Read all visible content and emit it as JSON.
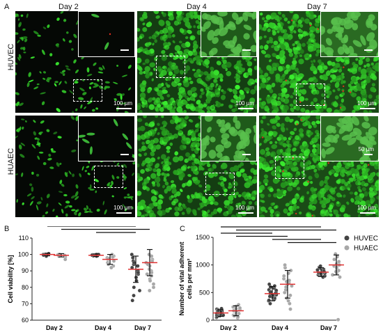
{
  "panel_labels": {
    "a": "A",
    "b": "B",
    "c": "C"
  },
  "micrographs": {
    "columns": [
      "Day 2",
      "Day 4",
      "Day 7"
    ],
    "rows": [
      "HUVEC",
      "HUAEC"
    ],
    "scale_bars": [
      "100 µm",
      "100 µm",
      "100 µm",
      "100 µm",
      "100 µm",
      "100 µm"
    ],
    "inset_scale_label": "50 µm",
    "colors": {
      "live": "#3ccf3a",
      "dead": "#e03020",
      "background": "#050805"
    }
  },
  "chart_data": [
    {
      "type": "scatter",
      "panel": "B",
      "ylabel": "Cell viability [%]",
      "categories": [
        "Day 2",
        "Day 4",
        "Day 7"
      ],
      "ylim": [
        60,
        110
      ],
      "yticks": [
        60,
        70,
        80,
        90,
        100,
        110
      ],
      "colors": {
        "HUVEC": "#444444",
        "HUAEC": "#a8a8a8",
        "mean": "#e03030"
      },
      "series": [
        {
          "group": "HUVEC",
          "mean": [
            100,
            99.5,
            91
          ],
          "sd": [
            0.8,
            0.8,
            8
          ],
          "points": [
            [
              100,
              99.5,
              100,
              99,
              100,
              100.5,
              99.8,
              100,
              99.6
            ],
            [
              100,
              99.5,
              99,
              100,
              99.8,
              99.2,
              100,
              99.6
            ],
            [
              100,
              98,
              96,
              94,
              92,
              90,
              88,
              86,
              84,
              80,
              78,
              75,
              72,
              93,
              95,
              89
            ]
          ]
        },
        {
          "group": "HUAEC",
          "mean": [
            99.5,
            97,
            95
          ],
          "sd": [
            1,
            3,
            8
          ],
          "points": [
            [
              100,
              99,
              98.5,
              99.5,
              100,
              97,
              99.8
            ],
            [
              100,
              99,
              98,
              97,
              96,
              95,
              93,
              92,
              98.5,
              97.5,
              94
            ],
            [
              100,
              99,
              97,
              95,
              93,
              91,
              90,
              89,
              88,
              87,
              85,
              84,
              82,
              80,
              78,
              96,
              94
            ]
          ]
        }
      ],
      "significance_brackets": [
        {
          "from": 0,
          "to": 2
        },
        {
          "from": 0.2,
          "to": 2.2
        },
        {
          "from": 1,
          "to": 2
        }
      ]
    },
    {
      "type": "scatter",
      "panel": "C",
      "ylabel": "Number of vital adherent cells per mm²",
      "categories": [
        "Day 2",
        "Day 4",
        "Day 7"
      ],
      "ylim": [
        0,
        1500
      ],
      "yticks": [
        0,
        500,
        1000,
        1500
      ],
      "legend": [
        "HUVEC",
        "HUAEC"
      ],
      "legend_position": "top-right",
      "colors": {
        "HUVEC": "#444444",
        "HUAEC": "#a8a8a8",
        "mean": "#e03030"
      },
      "series": [
        {
          "group": "HUVEC",
          "mean": [
            130,
            480,
            870
          ],
          "sd": [
            60,
            130,
            80
          ],
          "points": [
            [
              50,
              80,
              100,
              120,
              140,
              160,
              180,
              200,
              60,
              90,
              110,
              130,
              150,
              170,
              190,
              210,
              95,
              125,
              145,
              175
            ],
            [
              300,
              350,
              380,
              400,
              420,
              450,
              470,
              500,
              520,
              550,
              580,
              600,
              620,
              650,
              430,
              460,
              490,
              510,
              540,
              360
            ],
            [
              780,
              800,
              820,
              840,
              850,
              860,
              880,
              900,
              920,
              940,
              960,
              980,
              870,
              890,
              910,
              830,
              850
            ]
          ]
        },
        {
          "group": "HUAEC",
          "mean": [
            170,
            650,
            1000
          ],
          "sd": [
            90,
            250,
            180
          ],
          "points": [
            [
              40,
              60,
              90,
              110,
              130,
              160,
              190,
              220,
              250,
              280,
              80,
              120,
              170,
              210,
              240
            ],
            [
              200,
              300,
              350,
              400,
              450,
              500,
              550,
              600,
              650,
              700,
              750,
              800,
              850,
              900,
              950,
              1000,
              620,
              680,
              720
            ],
            [
              780,
              820,
              860,
              900,
              940,
              980,
              1020,
              1060,
              1100,
              1150,
              1200,
              1000,
              960,
              880,
              10
            ]
          ]
        }
      ],
      "significance_brackets": [
        {
          "from": 0,
          "to": 2
        },
        {
          "from": 0.2,
          "to": 2.2
        },
        {
          "from": 0,
          "to": 1
        },
        {
          "from": 0.2,
          "to": 1.2
        },
        {
          "from": 1,
          "to": 2
        },
        {
          "from": 1.2,
          "to": 2.2
        }
      ]
    }
  ]
}
